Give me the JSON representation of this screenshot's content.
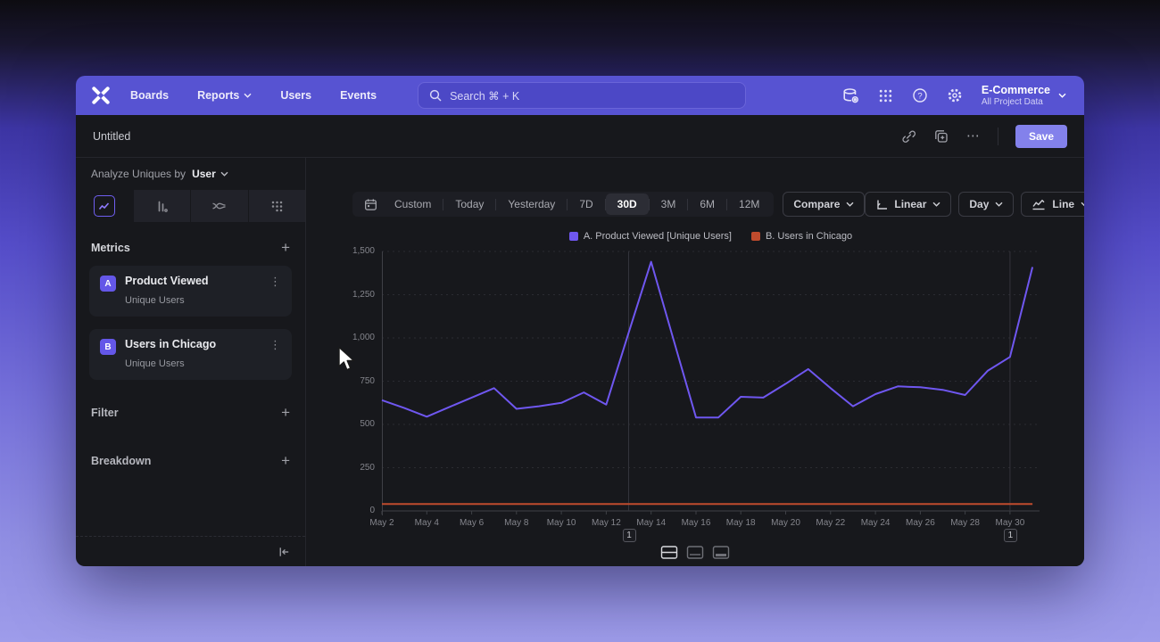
{
  "nav": {
    "items": [
      {
        "label": "Boards",
        "chevron": false
      },
      {
        "label": "Reports",
        "chevron": true
      },
      {
        "label": "Users",
        "chevron": false
      },
      {
        "label": "Events",
        "chevron": false
      }
    ],
    "search": {
      "placeholder": "Search  ⌘ + K"
    },
    "project": {
      "name": "E-Commerce",
      "subtitle": "All Project Data"
    }
  },
  "toolbar": {
    "title": "Untitled",
    "more_label": "⋯",
    "save_label": "Save"
  },
  "sidebar": {
    "analyze": {
      "prefix": "Analyze Uniques by",
      "value": "User"
    },
    "metrics_header": "Metrics",
    "metrics": [
      {
        "badge": "A",
        "name": "Product Viewed",
        "subtitle": "Unique Users"
      },
      {
        "badge": "B",
        "name": "Users in Chicago",
        "subtitle": "Unique Users"
      }
    ],
    "filter_header": "Filter",
    "breakdown_header": "Breakdown"
  },
  "controls": {
    "date_ranges": [
      "Custom",
      "Today",
      "Yesterday",
      "7D",
      "30D",
      "3M",
      "6M",
      "12M"
    ],
    "selected_range": "30D",
    "compare_label": "Compare",
    "scale_label": "Linear",
    "interval_label": "Day",
    "chart_type_label": "Line"
  },
  "chart_data": {
    "type": "line",
    "x": [
      "May 2",
      "May 3",
      "May 4",
      "May 5",
      "May 6",
      "May 7",
      "May 8",
      "May 9",
      "May 10",
      "May 11",
      "May 12",
      "May 13",
      "May 14",
      "May 15",
      "May 16",
      "May 17",
      "May 18",
      "May 19",
      "May 20",
      "May 21",
      "May 22",
      "May 23",
      "May 24",
      "May 25",
      "May 26",
      "May 27",
      "May 28",
      "May 29",
      "May 30",
      "May 31"
    ],
    "series": [
      {
        "name": "A. Product Viewed [Unique Users]",
        "color": "#6f57f0",
        "values": [
          640,
          595,
          545,
          600,
          655,
          710,
          590,
          605,
          625,
          685,
          615,
          1030,
          1440,
          990,
          540,
          540,
          660,
          655,
          735,
          820,
          710,
          605,
          675,
          720,
          715,
          700,
          670,
          810,
          890,
          1410
        ]
      },
      {
        "name": "B. Users in Chicago",
        "color": "#bf4b2d",
        "values": [
          40,
          40,
          40,
          40,
          40,
          40,
          40,
          40,
          40,
          40,
          40,
          40,
          40,
          40,
          40,
          40,
          40,
          40,
          40,
          40,
          40,
          40,
          40,
          40,
          40,
          40,
          40,
          40,
          40,
          40
        ]
      }
    ],
    "ylim": [
      0,
      1500
    ],
    "yticks": [
      "0",
      "250",
      "500",
      "750",
      "1,000",
      "1,250",
      "1,500"
    ],
    "xtick_labels": [
      "May 2",
      "May 4",
      "May 6",
      "May 8",
      "May 10",
      "May 12",
      "May 14",
      "May 16",
      "May 18",
      "May 20",
      "May 22",
      "May 24",
      "May 26",
      "May 28",
      "May 30"
    ],
    "grid": "horizontal-dashed",
    "legend_position": "top-center",
    "annotations": [
      {
        "label": "1",
        "x": "May 13"
      },
      {
        "label": "1",
        "x": "May 30"
      }
    ]
  },
  "footer": {
    "layout_options": [
      "split-horizontal",
      "chart-with-table",
      "table-focus"
    ],
    "selected_layout": "split-horizontal"
  }
}
